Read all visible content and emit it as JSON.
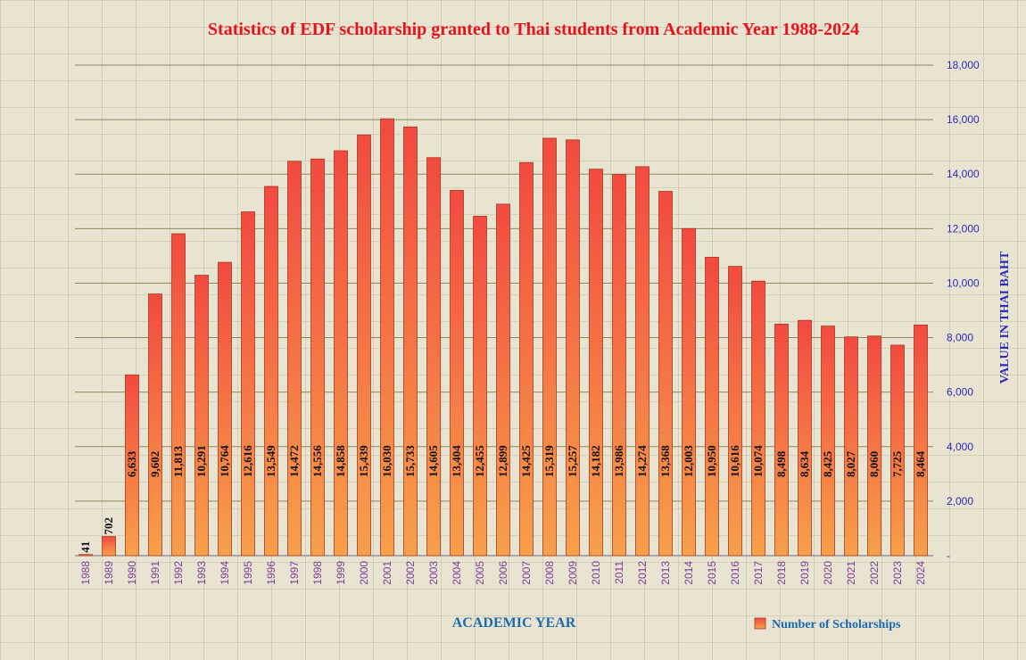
{
  "chart_data": {
    "type": "bar",
    "title": "Statistics of EDF scholarship granted to Thai students from Academic Year 1988-2024",
    "xlabel": "ACADEMIC YEAR",
    "ylabel": "VALUE IN THAI BAHT",
    "ylim": [
      0,
      18000
    ],
    "yticks": [
      0,
      2000,
      4000,
      6000,
      8000,
      10000,
      12000,
      14000,
      16000,
      18000
    ],
    "ytick_labels": [
      "-",
      "2,000",
      "4,000",
      "6,000",
      "8,000",
      "10,000",
      "12,000",
      "14,000",
      "16,000",
      "18,000"
    ],
    "y_axis_side": "right",
    "grid": true,
    "legend_position": "bottom-right",
    "categories": [
      "1988",
      "1989",
      "1990",
      "1991",
      "1992",
      "1993",
      "1994",
      "1995",
      "1996",
      "1997",
      "1998",
      "1999",
      "2000",
      "2001",
      "2002",
      "2003",
      "2004",
      "2005",
      "2006",
      "2007",
      "2008",
      "2009",
      "2010",
      "2011",
      "2012",
      "2013",
      "2014",
      "2015",
      "2016",
      "2017",
      "2018",
      "2019",
      "2020",
      "2021",
      "2022",
      "2023",
      "2024"
    ],
    "series": [
      {
        "name": "Number of Scholarships",
        "color_top": "#f24a40",
        "color_bottom": "#f7a04a",
        "values": [
          41,
          702,
          6633,
          9602,
          11813,
          10291,
          10764,
          12616,
          13549,
          14472,
          14556,
          14858,
          15439,
          16030,
          15733,
          14605,
          13404,
          12455,
          12899,
          14425,
          15319,
          15257,
          14182,
          13986,
          14274,
          13368,
          12003,
          10950,
          10616,
          10074,
          8498,
          8634,
          8425,
          8027,
          8060,
          7725,
          8464
        ],
        "labels": [
          "41",
          "702",
          "6,633",
          "9,602",
          "11,813",
          "10,291",
          "10,764",
          "12,616",
          "13,549",
          "14,472",
          "14,556",
          "14,858",
          "15,439",
          "16,030",
          "15,733",
          "14,605",
          "13,404",
          "12,455",
          "12,899",
          "14,425",
          "15,319",
          "15,257",
          "14,182",
          "13,986",
          "14,274",
          "13,368",
          "12,003",
          "10,950",
          "10,616",
          "10,074",
          "8,498",
          "8,634",
          "8,425",
          "8,027",
          "8,060",
          "7,725",
          "8,464"
        ]
      }
    ]
  }
}
